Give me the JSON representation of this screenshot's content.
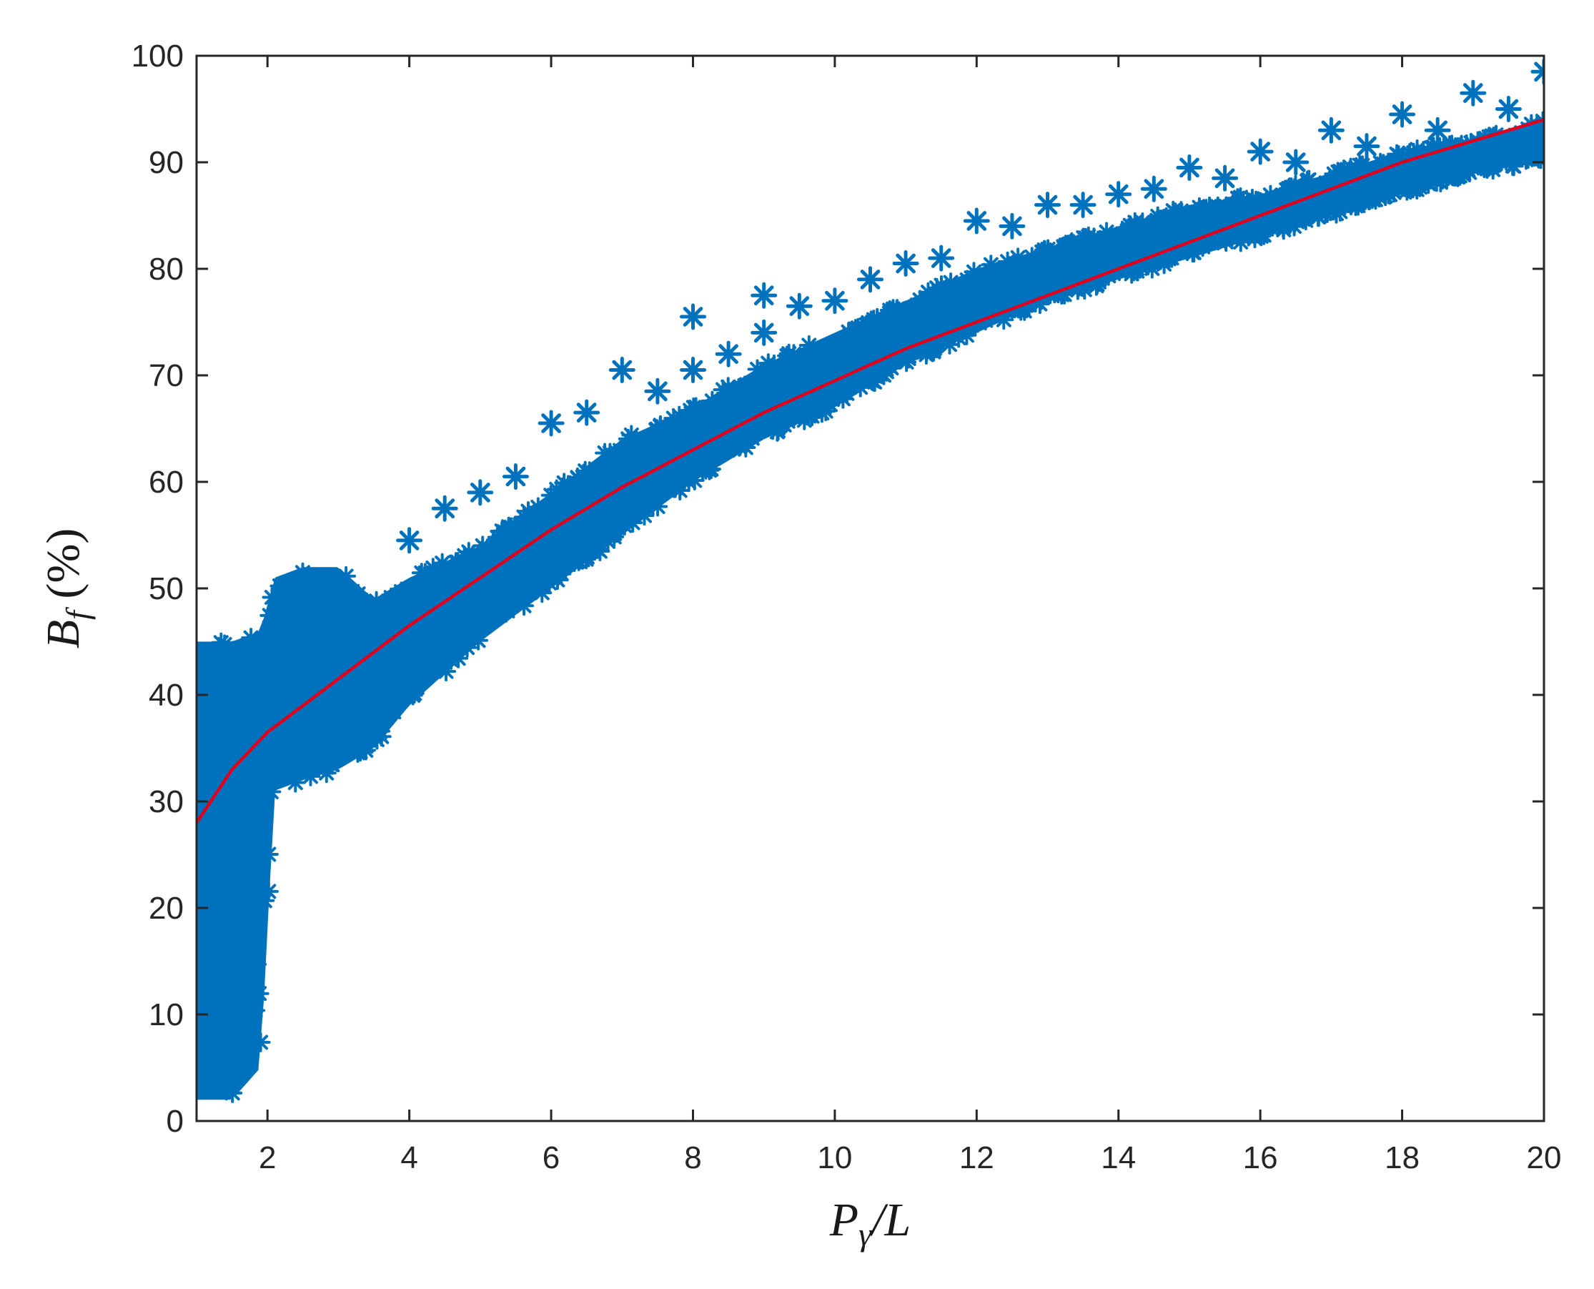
{
  "colors": {
    "marker": "#0072BD",
    "fit_line": "#E0001B",
    "axis": "#262626",
    "background": "#ffffff"
  },
  "chart_data": {
    "type": "scatter",
    "title": "",
    "xlabel": {
      "base": "P",
      "subscript": "γ",
      "suffix": "/L"
    },
    "ylabel": {
      "base": "B",
      "subscript": "f",
      "suffix": " (%)"
    },
    "xlim": [
      1,
      20
    ],
    "ylim": [
      0,
      100
    ],
    "grid": false,
    "legend": "none",
    "xticks": [
      2,
      4,
      6,
      8,
      10,
      12,
      14,
      16,
      18,
      20
    ],
    "yticks": [
      0,
      10,
      20,
      30,
      40,
      50,
      60,
      70,
      80,
      90,
      100
    ],
    "marker": "asterisk",
    "scatter_envelope": [
      {
        "x": 1.0,
        "low": 2,
        "high": 45
      },
      {
        "x": 1.5,
        "low": 2,
        "high": 45
      },
      {
        "x": 1.9,
        "low": 5,
        "high": 46
      },
      {
        "x": 2.1,
        "low": 31,
        "high": 51
      },
      {
        "x": 2.5,
        "low": 32,
        "high": 52
      },
      {
        "x": 3.0,
        "low": 33,
        "high": 52
      },
      {
        "x": 3.5,
        "low": 35,
        "high": 49
      },
      {
        "x": 4.0,
        "low": 39,
        "high": 51
      },
      {
        "x": 5.0,
        "low": 45,
        "high": 54
      },
      {
        "x": 6.0,
        "low": 50,
        "high": 59
      },
      {
        "x": 7.0,
        "low": 55,
        "high": 64
      },
      {
        "x": 8.0,
        "low": 60,
        "high": 67
      },
      {
        "x": 9.0,
        "low": 64,
        "high": 71
      },
      {
        "x": 10.0,
        "low": 67,
        "high": 74
      },
      {
        "x": 11.0,
        "low": 71,
        "high": 77
      },
      {
        "x": 12.0,
        "low": 74,
        "high": 80
      },
      {
        "x": 13.0,
        "low": 77,
        "high": 82
      },
      {
        "x": 14.0,
        "low": 79,
        "high": 84
      },
      {
        "x": 15.0,
        "low": 81,
        "high": 86
      },
      {
        "x": 16.0,
        "low": 83,
        "high": 87
      },
      {
        "x": 17.0,
        "low": 85,
        "high": 89
      },
      {
        "x": 18.0,
        "low": 87,
        "high": 91
      },
      {
        "x": 19.0,
        "low": 89,
        "high": 92
      },
      {
        "x": 20.0,
        "low": 90,
        "high": 94
      }
    ],
    "outliers": [
      {
        "x": 4.0,
        "y": 54.5
      },
      {
        "x": 4.5,
        "y": 57.5
      },
      {
        "x": 5.0,
        "y": 59.0
      },
      {
        "x": 5.5,
        "y": 60.5
      },
      {
        "x": 6.0,
        "y": 65.5
      },
      {
        "x": 6.5,
        "y": 66.5
      },
      {
        "x": 7.0,
        "y": 70.5
      },
      {
        "x": 7.5,
        "y": 68.5
      },
      {
        "x": 8.0,
        "y": 75.5
      },
      {
        "x": 8.0,
        "y": 70.5
      },
      {
        "x": 8.5,
        "y": 72.0
      },
      {
        "x": 9.0,
        "y": 77.5
      },
      {
        "x": 9.0,
        "y": 74.0
      },
      {
        "x": 9.5,
        "y": 76.5
      },
      {
        "x": 10.0,
        "y": 77.0
      },
      {
        "x": 10.5,
        "y": 79.0
      },
      {
        "x": 11.0,
        "y": 80.5
      },
      {
        "x": 11.5,
        "y": 81.0
      },
      {
        "x": 12.0,
        "y": 84.5
      },
      {
        "x": 12.5,
        "y": 84.0
      },
      {
        "x": 13.0,
        "y": 86.0
      },
      {
        "x": 13.5,
        "y": 86.0
      },
      {
        "x": 14.0,
        "y": 87.0
      },
      {
        "x": 14.5,
        "y": 87.5
      },
      {
        "x": 15.0,
        "y": 89.5
      },
      {
        "x": 15.5,
        "y": 88.5
      },
      {
        "x": 16.0,
        "y": 91.0
      },
      {
        "x": 16.5,
        "y": 90.0
      },
      {
        "x": 17.0,
        "y": 93.0
      },
      {
        "x": 17.5,
        "y": 91.5
      },
      {
        "x": 18.0,
        "y": 94.5
      },
      {
        "x": 18.5,
        "y": 93.0
      },
      {
        "x": 19.0,
        "y": 96.5
      },
      {
        "x": 19.5,
        "y": 95.0
      },
      {
        "x": 20.0,
        "y": 98.5
      },
      {
        "x": 1.6,
        "y": 13.5
      }
    ],
    "fit_line": [
      {
        "x": 1.0,
        "y": 28.0
      },
      {
        "x": 1.5,
        "y": 33.0
      },
      {
        "x": 2.0,
        "y": 36.5
      },
      {
        "x": 3.0,
        "y": 41.5
      },
      {
        "x": 4.0,
        "y": 46.5
      },
      {
        "x": 5.0,
        "y": 51.0
      },
      {
        "x": 6.0,
        "y": 55.5
      },
      {
        "x": 7.0,
        "y": 59.5
      },
      {
        "x": 8.0,
        "y": 63.0
      },
      {
        "x": 9.0,
        "y": 66.5
      },
      {
        "x": 10.0,
        "y": 69.5
      },
      {
        "x": 11.0,
        "y": 72.5
      },
      {
        "x": 12.0,
        "y": 75.0
      },
      {
        "x": 13.0,
        "y": 77.5
      },
      {
        "x": 14.0,
        "y": 80.0
      },
      {
        "x": 15.0,
        "y": 82.5
      },
      {
        "x": 16.0,
        "y": 85.0
      },
      {
        "x": 17.0,
        "y": 87.5
      },
      {
        "x": 18.0,
        "y": 90.0
      },
      {
        "x": 19.0,
        "y": 92.0
      },
      {
        "x": 20.0,
        "y": 94.0
      }
    ]
  }
}
